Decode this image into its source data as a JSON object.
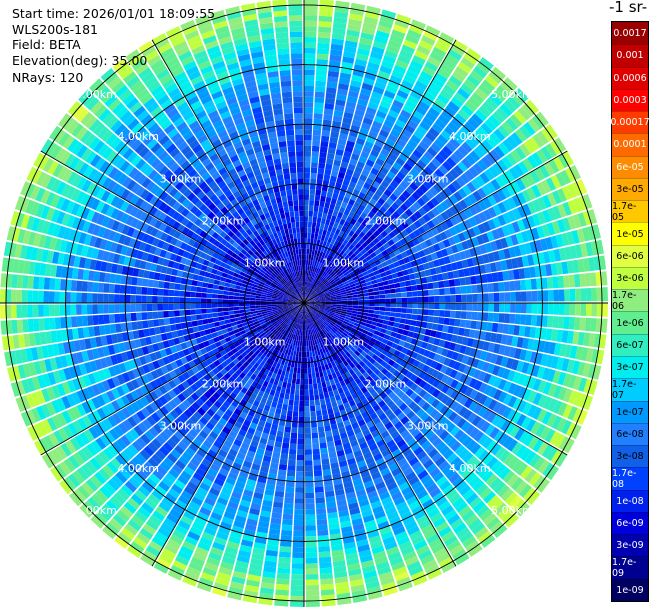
{
  "info": {
    "start_time": "Start time: 2026/01/01 18:09:55",
    "instrument": "WLS200s-181",
    "field": "Field: BETA",
    "elevation": "Elevation(deg): 35.00",
    "nrays": "NRays: 120"
  },
  "colorbar": {
    "units_label": "-1 sr-",
    "labels": [
      "0.0017",
      "0.001",
      "0.0006",
      "0.0003",
      "0.00017",
      "0.0001",
      "6e-05",
      "3e-05",
      "1.7e-05",
      "1e-05",
      "6e-06",
      "3e-06",
      "1.7e-06",
      "1e-06",
      "6e-07",
      "3e-07",
      "1.7e-07",
      "1e-07",
      "6e-08",
      "3e-08",
      "1.7e-08",
      "1e-08",
      "6e-09",
      "3e-09",
      "1.7e-09",
      "1e-09"
    ],
    "colors": [
      "#990000",
      "#c00000",
      "#e00000",
      "#ff0000",
      "#ff3b00",
      "#ff6a00",
      "#ff8c00",
      "#ffaa00",
      "#ffc800",
      "#ffff00",
      "#e0ff40",
      "#bfff40",
      "#90ee80",
      "#60ee90",
      "#30eec0",
      "#00eeee",
      "#00ccff",
      "#0099ff",
      "#2080ff",
      "#1060e8",
      "#0040ff",
      "#0020ee",
      "#0000dd",
      "#0000b0",
      "#000090",
      "#000060"
    ]
  },
  "chart_data": {
    "type": "heatmap",
    "projection": "polar-ppi",
    "title": "",
    "field": "BETA",
    "elevation_deg": 35.0,
    "nrays": 120,
    "range_rings_km": [
      1,
      2,
      3,
      4,
      5
    ],
    "ring_labels": [
      "1.00km",
      "2.00km",
      "3.00km",
      "4.00km",
      "5.00km"
    ],
    "max_range_km": 5.1,
    "spokes_deg": [
      0,
      30,
      60,
      90,
      120,
      150,
      180,
      210,
      240,
      270,
      300,
      330
    ],
    "value_profile": {
      "range_km": [
        0.2,
        0.8,
        1.5,
        2.5,
        3.5,
        4.3,
        4.8,
        5.1
      ],
      "log10_beta": [
        -8.7,
        -8.3,
        -7.9,
        -7.6,
        -7.2,
        -6.5,
        -5.9,
        -5.7
      ]
    }
  }
}
